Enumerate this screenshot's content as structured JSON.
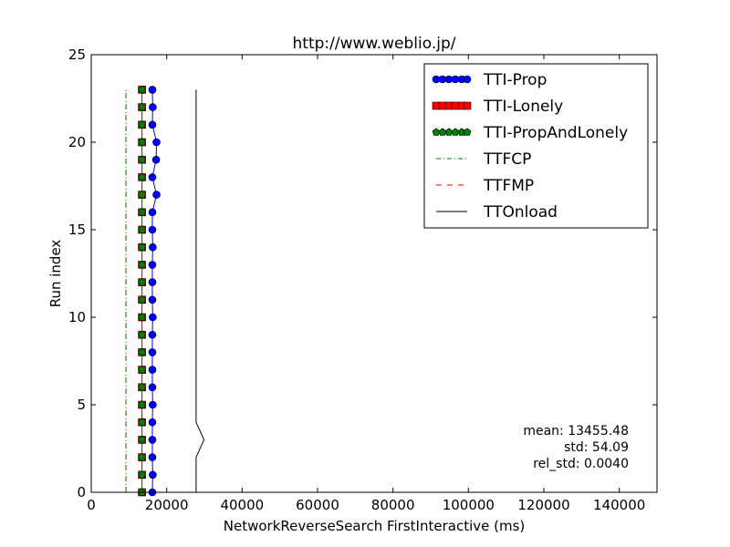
{
  "chart_data": {
    "type": "line",
    "title": "http://www.weblio.jp/",
    "xlabel": "NetworkReverseSearch FirstInteractive (ms)",
    "ylabel": "Run index",
    "xlim": [
      0,
      150000
    ],
    "ylim": [
      0,
      25
    ],
    "xticks": [
      0,
      20000,
      40000,
      60000,
      80000,
      100000,
      120000,
      140000
    ],
    "xtick_labels": [
      "0",
      "20000",
      "40000",
      "60000",
      "80000",
      "100000",
      "120000",
      "140000"
    ],
    "yticks": [
      0,
      5,
      10,
      15,
      20,
      25
    ],
    "ytick_labels": [
      "0",
      "5",
      "10",
      "15",
      "20",
      "25"
    ],
    "grid": false,
    "legend_position": "top-right",
    "y": [
      0,
      1,
      2,
      3,
      4,
      5,
      6,
      7,
      8,
      9,
      10,
      11,
      12,
      13,
      14,
      15,
      16,
      17,
      18,
      19,
      20,
      21,
      22,
      23
    ],
    "series": [
      {
        "name": "TTI-Prop",
        "color": "#0000ff",
        "style": "solid-circle-markers",
        "x": [
          16200,
          16300,
          16200,
          16200,
          16200,
          16300,
          16200,
          16200,
          16200,
          16200,
          16300,
          16200,
          16200,
          16200,
          16300,
          16200,
          16200,
          17300,
          16200,
          17200,
          17300,
          16200,
          16300,
          16200
        ]
      },
      {
        "name": "TTI-Lonely",
        "color": "#ff0000",
        "style": "solid-square-markers",
        "x": [
          13450,
          13450,
          13450,
          13450,
          13450,
          13450,
          13450,
          13450,
          13450,
          13450,
          13450,
          13450,
          13450,
          13450,
          13450,
          13450,
          13450,
          13450,
          13450,
          13450,
          13450,
          13450,
          13450,
          13450
        ]
      },
      {
        "name": "TTI-PropAndLonely",
        "color": "#008000",
        "style": "solid-pentagon-markers",
        "x": [
          13450,
          13450,
          13450,
          13450,
          13450,
          13450,
          13450,
          13450,
          13450,
          13450,
          13450,
          13450,
          13450,
          13450,
          13450,
          13450,
          13450,
          13450,
          13450,
          13450,
          13450,
          13450,
          13450,
          13450
        ]
      },
      {
        "name": "TTFCP",
        "color": "#008000",
        "style": "dash-dot",
        "x": [
          9200,
          9200,
          9200,
          9200,
          9200,
          9200,
          9200,
          9200,
          9200,
          9200,
          9200,
          9200,
          9200,
          9200,
          9200,
          9200,
          9200,
          9200,
          9200,
          9200,
          9200,
          9200,
          9200,
          9200
        ]
      },
      {
        "name": "TTFMP",
        "color": "#ff0000",
        "style": "dashed",
        "x": [
          9200,
          9200,
          9200,
          9200,
          9200,
          9200,
          9200,
          9200,
          9200,
          9200,
          9200,
          9200,
          9200,
          9200,
          9200,
          9200,
          9200,
          9200,
          9200,
          9200,
          9200,
          9200,
          9200,
          9200
        ]
      },
      {
        "name": "TTOnload",
        "color": "#000000",
        "style": "solid",
        "x": [
          27800,
          27800,
          27800,
          29900,
          27800,
          27800,
          27800,
          27800,
          27800,
          27800,
          27800,
          27800,
          27800,
          27800,
          27800,
          27800,
          27800,
          27800,
          27800,
          27800,
          27800,
          27800,
          27800,
          27800
        ]
      }
    ],
    "annotations": [
      "mean: 13455.48",
      "std: 54.09",
      "rel_std: 0.0040"
    ]
  }
}
